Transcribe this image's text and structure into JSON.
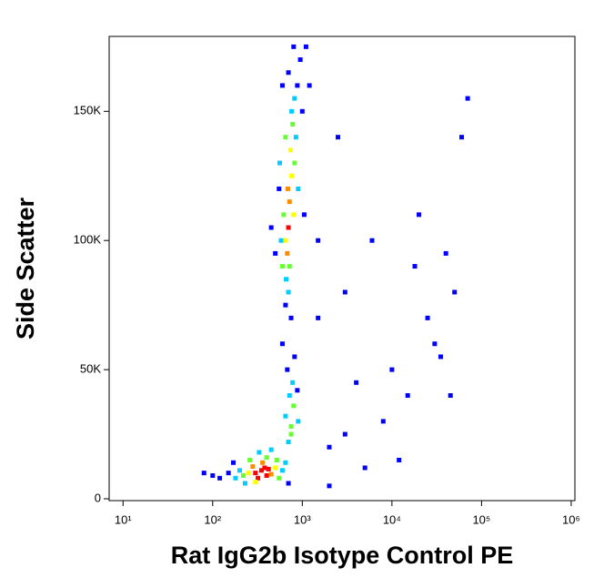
{
  "chart_data": {
    "type": "scatter",
    "xlabel": "Rat IgG2b Isotype Control PE",
    "ylabel": "Side Scatter",
    "xscale": "log",
    "xlim": [
      7,
      1100000
    ],
    "ylim": [
      -700,
      179000
    ],
    "xticks": [
      {
        "value": 10,
        "label": "10¹"
      },
      {
        "value": 100,
        "label": "10²"
      },
      {
        "value": 1000,
        "label": "10³"
      },
      {
        "value": 10000,
        "label": "10⁴"
      },
      {
        "value": 100000,
        "label": "10⁵"
      },
      {
        "value": 1000000,
        "label": "10⁶"
      }
    ],
    "yticks": [
      0,
      {
        "value": 50000,
        "label": "50K"
      },
      {
        "value": 100000,
        "label": "100K"
      },
      {
        "value": 150000,
        "label": "150K"
      }
    ],
    "x": [
      300,
      350,
      400,
      380,
      320,
      420,
      280,
      450,
      250,
      500,
      360,
      300,
      220,
      200,
      180,
      550,
      600,
      260,
      400,
      330,
      150,
      120,
      700,
      450,
      230,
      520,
      650,
      170,
      100,
      80,
      700,
      750,
      650,
      800,
      720,
      780,
      680,
      820,
      600,
      900,
      750,
      880,
      700,
      720,
      680,
      760,
      650,
      800,
      740,
      620,
      780,
      690,
      820,
      600,
      660,
      850,
      760,
      580,
      900,
      700,
      650,
      820,
      880,
      700,
      950,
      600,
      1000,
      550,
      500,
      750,
      1100,
      800,
      650,
      720,
      560,
      1050,
      450,
      2000,
      3000,
      5000,
      8000,
      15000,
      30000,
      50000,
      40000,
      60000,
      70000,
      20000,
      3000,
      1500,
      4000,
      10000,
      25000,
      1200,
      2500,
      6000,
      12000,
      35000,
      2000,
      45000,
      18000,
      1500
    ],
    "y": [
      10000,
      11000,
      9000,
      12000,
      8000,
      11500,
      12500,
      9500,
      10000,
      12000,
      14000,
      6500,
      9000,
      11000,
      8000,
      8000,
      11000,
      15000,
      16000,
      18000,
      10000,
      8000,
      6000,
      19000,
      6000,
      15000,
      14000,
      14000,
      9000,
      10000,
      22000,
      28000,
      32000,
      36000,
      40000,
      45000,
      50000,
      55000,
      60000,
      30000,
      25000,
      42000,
      105000,
      115000,
      95000,
      125000,
      100000,
      110000,
      135000,
      110000,
      145000,
      120000,
      130000,
      90000,
      85000,
      140000,
      150000,
      100000,
      120000,
      80000,
      75000,
      155000,
      160000,
      165000,
      170000,
      160000,
      150000,
      120000,
      95000,
      70000,
      175000,
      175000,
      140000,
      90000,
      130000,
      110000,
      105000,
      20000,
      25000,
      12000,
      30000,
      40000,
      60000,
      80000,
      95000,
      140000,
      155000,
      110000,
      80000,
      70000,
      45000,
      50000,
      70000,
      160000,
      140000,
      100000,
      15000,
      55000,
      5000,
      40000,
      90000,
      100000
    ],
    "colors": [
      "#ff0000",
      "#ff0000",
      "#ff0000",
      "#ff0000",
      "#ff0000",
      "#ff0000",
      "#ff8c00",
      "#ff8c00",
      "#ffff00",
      "#ffff00",
      "#ff8c00",
      "#ffff00",
      "#66ff33",
      "#00ccff",
      "#00ccff",
      "#66ff33",
      "#00ccff",
      "#66ff33",
      "#66ff33",
      "#00ccff",
      "#0000ff",
      "#0000ff",
      "#0000ff",
      "#00ccff",
      "#00ccff",
      "#66ff33",
      "#00ccff",
      "#0000ff",
      "#0000ff",
      "#0000ff",
      "#00ccff",
      "#66ff33",
      "#00ccff",
      "#66ff33",
      "#00ccff",
      "#00ccff",
      "#0000ff",
      "#0000ff",
      "#0000ff",
      "#00ccff",
      "#66ff33",
      "#0000ff",
      "#ff0000",
      "#ff8c00",
      "#ff8c00",
      "#ffff00",
      "#ffff00",
      "#ffff00",
      "#ffff00",
      "#66ff33",
      "#66ff33",
      "#ff8c00",
      "#66ff33",
      "#66ff33",
      "#00ccff",
      "#00ccff",
      "#00ccff",
      "#00ccff",
      "#00ccff",
      "#00ccff",
      "#0000ff",
      "#00ccff",
      "#0000ff",
      "#0000ff",
      "#0000ff",
      "#0000ff",
      "#0000ff",
      "#0000ff",
      "#0000ff",
      "#0000ff",
      "#0000ff",
      "#0000ff",
      "#66ff33",
      "#66ff33",
      "#00ccff",
      "#0000ff",
      "#0000ff",
      "#0000ff",
      "#0000ff",
      "#0000ff",
      "#0000ff",
      "#0000ff",
      "#0000ff",
      "#0000ff",
      "#0000ff",
      "#0000ff",
      "#0000ff",
      "#0000ff",
      "#0000ff",
      "#0000ff",
      "#0000ff",
      "#0000ff",
      "#0000ff",
      "#0000ff",
      "#0000ff",
      "#0000ff",
      "#0000ff",
      "#0000ff",
      "#0000ff",
      "#0000ff",
      "#0000ff",
      "#0000ff"
    ]
  }
}
